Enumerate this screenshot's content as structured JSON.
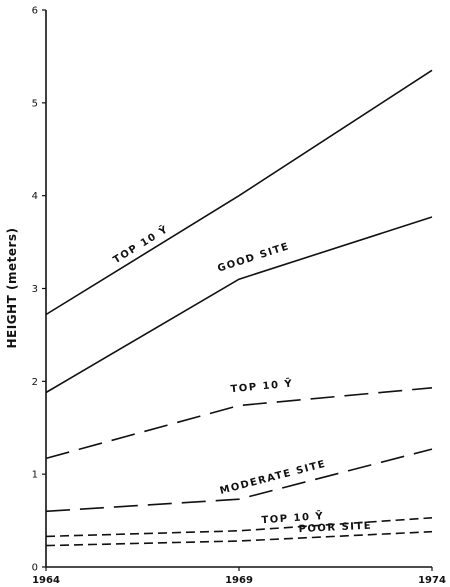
{
  "chart_data": {
    "type": "line",
    "title": "",
    "xlabel": "",
    "ylabel": "HEIGHT (meters)",
    "x": [
      1964,
      1969,
      1974
    ],
    "x_ticks": [
      "1964",
      "1969",
      "1974"
    ],
    "y_ticks": [
      "0",
      "1",
      "2",
      "3",
      "4",
      "5",
      "6"
    ],
    "xlim": [
      1964,
      1974
    ],
    "ylim": [
      0,
      6
    ],
    "grid": false,
    "series": [
      {
        "name": "TOP 10 Ȳ",
        "group": "GOOD SITE",
        "style": "solid",
        "values": [
          2.72,
          4.0,
          5.35
        ]
      },
      {
        "name": "GOOD SITE",
        "group": "GOOD SITE",
        "style": "solid",
        "values": [
          1.88,
          3.1,
          3.77
        ]
      },
      {
        "name": "TOP 10 Ȳ",
        "group": "MODERATE SITE",
        "style": "long-dash",
        "values": [
          1.17,
          1.74,
          1.93
        ]
      },
      {
        "name": "MODERATE SITE",
        "group": "MODERATE SITE",
        "style": "long-dash",
        "values": [
          0.6,
          0.73,
          1.27
        ]
      },
      {
        "name": "TOP 10 Ȳ",
        "group": "POOR SITE",
        "style": "short-dash",
        "values": [
          0.33,
          0.39,
          0.53
        ]
      },
      {
        "name": "POOR SITE",
        "group": "POOR SITE",
        "style": "short-dash",
        "values": [
          0.23,
          0.28,
          0.38
        ]
      }
    ]
  }
}
